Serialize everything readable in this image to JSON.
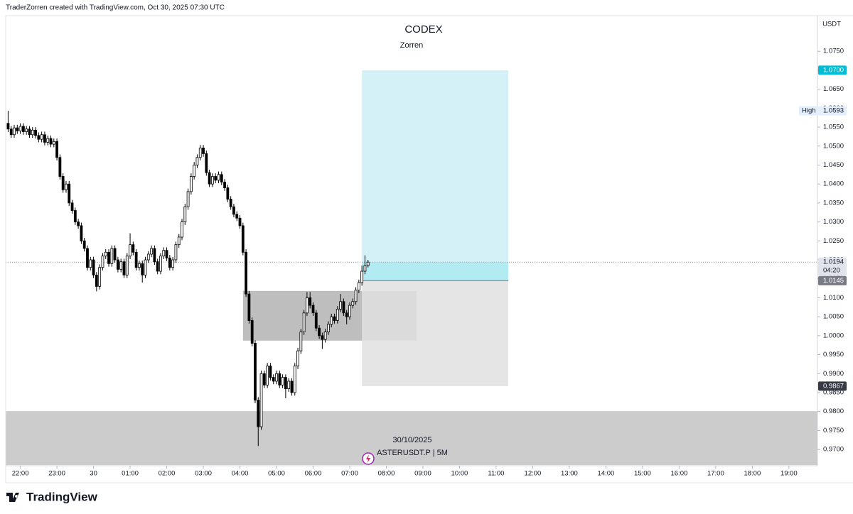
{
  "header": "TraderZorren created with TradingView.com, Oct 30, 2025 07:30 UTC",
  "footer": "TradingView",
  "chart_data": {
    "type": "candlestick",
    "title": "CODEX",
    "subtitle": "Zorren",
    "currency": "USDT",
    "watermark_date": "30/10/2025",
    "watermark_symbol": "ASTERUSDT.P | 5M",
    "up_color": "#ffffff",
    "down_color": "#000000",
    "grid": false,
    "x": [
      "21:40",
      "21:45",
      "21:50",
      "21:55",
      "22:00",
      "22:05",
      "22:10",
      "22:15",
      "22:20",
      "22:25",
      "22:30",
      "22:35",
      "22:40",
      "22:45",
      "22:50",
      "22:55",
      "23:00",
      "23:05",
      "23:10",
      "23:15",
      "23:20",
      "23:25",
      "23:30",
      "23:35",
      "23:40",
      "23:45",
      "23:50",
      "23:55",
      "00:00",
      "00:05",
      "00:10",
      "00:15",
      "00:20",
      "00:25",
      "00:30",
      "00:35",
      "00:40",
      "00:45",
      "00:50",
      "00:55",
      "01:00",
      "01:05",
      "01:10",
      "01:15",
      "01:20",
      "01:25",
      "01:30",
      "01:35",
      "01:40",
      "01:45",
      "01:50",
      "01:55",
      "02:00",
      "02:05",
      "02:10",
      "02:15",
      "02:20",
      "02:25",
      "02:30",
      "02:35",
      "02:40",
      "02:45",
      "02:50",
      "02:55",
      "03:00",
      "03:05",
      "03:10",
      "03:15",
      "03:20",
      "03:25",
      "03:30",
      "03:35",
      "03:40",
      "03:45",
      "03:50",
      "03:55",
      "04:00",
      "04:05",
      "04:10",
      "04:15",
      "04:20",
      "04:25",
      "04:30",
      "04:35",
      "04:40",
      "04:45",
      "04:50",
      "04:55",
      "05:00",
      "05:05",
      "05:10",
      "05:15",
      "05:20",
      "05:25",
      "05:30",
      "05:35",
      "05:40",
      "05:45",
      "05:50",
      "05:55",
      "06:00",
      "06:05",
      "06:10",
      "06:15",
      "06:20",
      "06:25",
      "06:30",
      "06:35",
      "06:40",
      "06:45",
      "06:50",
      "06:55",
      "07:00",
      "07:05",
      "07:10",
      "07:15",
      "07:20",
      "07:25",
      "07:30"
    ],
    "open": [
      1.056,
      1.0545,
      1.053,
      1.0548,
      1.054,
      1.0552,
      1.0538,
      1.0545,
      1.053,
      1.0542,
      1.0528,
      1.0518,
      1.053,
      1.051,
      1.052,
      1.0505,
      1.0512,
      1.047,
      1.042,
      1.0385,
      1.04,
      1.035,
      1.033,
      1.03,
      1.029,
      1.025,
      1.023,
      1.018,
      1.02,
      1.016,
      1.013,
      1.018,
      1.021,
      1.022,
      1.019,
      1.023,
      1.02,
      1.0175,
      1.0195,
      1.016,
      1.021,
      1.024,
      1.022,
      1.018,
      1.019,
      1.016,
      1.02,
      1.0215,
      1.023,
      1.0195,
      1.017,
      1.021,
      1.0225,
      1.0205,
      1.018,
      1.02,
      1.024,
      1.026,
      1.03,
      1.034,
      1.038,
      1.042,
      1.045,
      1.047,
      1.0495,
      1.048,
      1.043,
      1.04,
      1.042,
      1.041,
      1.0425,
      1.0405,
      1.039,
      1.036,
      1.034,
      1.032,
      1.031,
      1.029,
      1.022,
      1.011,
      1.004,
      0.998,
      0.983,
      0.976,
      0.99,
      0.987,
      0.992,
      0.989,
      0.988,
      0.99,
      0.987,
      0.989,
      0.986,
      0.988,
      0.985,
      0.992,
      0.996,
      1.001,
      1.006,
      1.01,
      1.008,
      1.006,
      1.002,
      1.0,
      0.999,
      1.001,
      1.003,
      1.005,
      1.004,
      1.007,
      1.009,
      1.006,
      1.005,
      1.008,
      1.009,
      1.012,
      1.014,
      1.017,
      1.0185
    ],
    "high": [
      1.0593,
      1.0553,
      1.0556,
      1.0556,
      1.056,
      1.056,
      1.0553,
      1.0553,
      1.055,
      1.055,
      1.0536,
      1.0538,
      1.0538,
      1.0528,
      1.0528,
      1.052,
      1.052,
      1.0478,
      1.0428,
      1.0408,
      1.0408,
      1.0358,
      1.0338,
      1.0308,
      1.0298,
      1.0258,
      1.0238,
      1.0208,
      1.0208,
      1.0168,
      1.0188,
      1.0218,
      1.0228,
      1.0228,
      1.0238,
      1.0238,
      1.0208,
      1.0203,
      1.0203,
      1.0218,
      1.027,
      1.0248,
      1.0228,
      1.0198,
      1.0198,
      1.0208,
      1.0223,
      1.0238,
      1.0238,
      1.0203,
      1.0218,
      1.0233,
      1.0233,
      1.0213,
      1.0208,
      1.0248,
      1.0268,
      1.0308,
      1.0348,
      1.0388,
      1.0428,
      1.0458,
      1.0478,
      1.0503,
      1.0503,
      1.0488,
      1.0438,
      1.0428,
      1.0428,
      1.0433,
      1.0433,
      1.0413,
      1.0398,
      1.0368,
      1.0348,
      1.0328,
      1.0318,
      1.0298,
      1.0228,
      1.0118,
      1.0048,
      0.9988,
      0.9838,
      0.9908,
      0.9908,
      0.9928,
      0.9928,
      0.9898,
      0.9908,
      0.9908,
      0.9898,
      0.9898,
      0.9888,
      0.9888,
      0.9928,
      0.9968,
      1.0018,
      1.0068,
      1.0115,
      1.0115,
      1.0088,
      1.0068,
      1.0028,
      1.0008,
      1.0018,
      1.0038,
      1.0058,
      1.0058,
      1.0078,
      1.011,
      1.0098,
      1.0068,
      1.0088,
      1.0098,
      1.0128,
      1.0148,
      1.0185,
      1.0212,
      1.02
    ],
    "low": [
      1.0537,
      1.0522,
      1.0522,
      1.0532,
      1.0532,
      1.053,
      1.053,
      1.0522,
      1.0522,
      1.052,
      1.051,
      1.051,
      1.0502,
      1.0502,
      1.0497,
      1.0497,
      1.0462,
      1.0412,
      1.0377,
      1.0377,
      1.0342,
      1.0322,
      1.0292,
      1.0282,
      1.0242,
      1.0222,
      1.0172,
      1.0172,
      1.0152,
      1.0117,
      1.0122,
      1.0172,
      1.0202,
      1.0182,
      1.0182,
      1.0192,
      1.0167,
      1.0167,
      1.0152,
      1.0152,
      1.0202,
      1.0212,
      1.0172,
      1.0172,
      1.014,
      1.0152,
      1.0192,
      1.0207,
      1.0187,
      1.0162,
      1.0162,
      1.0202,
      1.0197,
      1.0172,
      1.0172,
      1.0192,
      1.0232,
      1.0252,
      1.0292,
      1.0332,
      1.0372,
      1.0412,
      1.0442,
      1.0462,
      1.0472,
      1.0422,
      1.0392,
      1.0392,
      1.0402,
      1.0402,
      1.0397,
      1.0382,
      1.0352,
      1.0332,
      1.0312,
      1.0302,
      1.0282,
      1.0212,
      1.0102,
      1.0032,
      0.9972,
      0.9822,
      0.9709,
      0.9752,
      0.9862,
      0.9862,
      0.9882,
      0.9872,
      0.9872,
      0.9862,
      0.9862,
      0.9835,
      0.9852,
      0.9842,
      0.9842,
      0.9912,
      0.9952,
      1.0002,
      1.0052,
      1.0072,
      1.0052,
      1.0012,
      0.9992,
      0.9965,
      0.9982,
      1.0002,
      1.0022,
      1.0032,
      1.0032,
      1.0062,
      1.0052,
      1.003,
      1.0042,
      1.0072,
      1.0082,
      1.0112,
      1.0132,
      1.0162,
      1.018
    ],
    "close": [
      1.0545,
      1.053,
      1.0548,
      1.054,
      1.0552,
      1.0538,
      1.0545,
      1.053,
      1.0542,
      1.0528,
      1.0518,
      1.053,
      1.051,
      1.052,
      1.0505,
      1.0512,
      1.047,
      1.042,
      1.0385,
      1.04,
      1.035,
      1.033,
      1.03,
      1.029,
      1.025,
      1.023,
      1.018,
      1.02,
      1.016,
      1.013,
      1.018,
      1.021,
      1.022,
      1.019,
      1.023,
      1.02,
      1.0175,
      1.0195,
      1.016,
      1.021,
      1.024,
      1.022,
      1.018,
      1.019,
      1.016,
      1.02,
      1.0215,
      1.023,
      1.0195,
      1.017,
      1.021,
      1.0225,
      1.0205,
      1.018,
      1.02,
      1.024,
      1.026,
      1.03,
      1.034,
      1.038,
      1.042,
      1.045,
      1.047,
      1.0495,
      1.048,
      1.043,
      1.04,
      1.042,
      1.041,
      1.0425,
      1.0405,
      1.039,
      1.036,
      1.034,
      1.032,
      1.031,
      1.029,
      1.022,
      1.011,
      1.004,
      0.998,
      0.983,
      0.976,
      0.99,
      0.987,
      0.992,
      0.989,
      0.988,
      0.99,
      0.987,
      0.989,
      0.986,
      0.988,
      0.985,
      0.992,
      0.996,
      1.001,
      1.006,
      1.01,
      1.008,
      1.006,
      1.002,
      1.0,
      0.999,
      1.001,
      1.003,
      1.005,
      1.004,
      1.007,
      1.009,
      1.006,
      1.005,
      1.008,
      1.009,
      1.012,
      1.014,
      1.017,
      1.0185,
      1.0194
    ],
    "xlim": [
      21.6,
      43.78
    ],
    "xticks": [
      {
        "value": 22,
        "label": "22:00"
      },
      {
        "value": 23,
        "label": "23:00"
      },
      {
        "value": 24,
        "label": "30"
      },
      {
        "value": 25,
        "label": "01:00"
      },
      {
        "value": 26,
        "label": "02:00"
      },
      {
        "value": 27,
        "label": "03:00"
      },
      {
        "value": 28,
        "label": "04:00"
      },
      {
        "value": 29,
        "label": "05:00"
      },
      {
        "value": 30,
        "label": "06:00"
      },
      {
        "value": 31,
        "label": "07:00"
      },
      {
        "value": 32,
        "label": "08:00"
      },
      {
        "value": 33,
        "label": "09:00"
      },
      {
        "value": 34,
        "label": "10:00"
      },
      {
        "value": 35,
        "label": "11:00"
      },
      {
        "value": 36,
        "label": "12:00"
      },
      {
        "value": 37,
        "label": "13:00"
      },
      {
        "value": 38,
        "label": "14:00"
      },
      {
        "value": 39,
        "label": "15:00"
      },
      {
        "value": 40,
        "label": "16:00"
      },
      {
        "value": 41,
        "label": "17:00"
      },
      {
        "value": 42,
        "label": "18:00"
      },
      {
        "value": 43,
        "label": "19:00"
      }
    ],
    "ylim": [
      0.9659,
      1.0844
    ],
    "yticks": [
      {
        "value": 0.97,
        "label": "0.9700"
      },
      {
        "value": 0.975,
        "label": "0.9750"
      },
      {
        "value": 0.98,
        "label": "0.9800"
      },
      {
        "value": 0.985,
        "label": "0.9850"
      },
      {
        "value": 0.99,
        "label": "0.9900"
      },
      {
        "value": 0.995,
        "label": "0.9950"
      },
      {
        "value": 1.0,
        "label": "1.0000"
      },
      {
        "value": 1.005,
        "label": "1.0050"
      },
      {
        "value": 1.01,
        "label": "1.0100"
      },
      {
        "value": 1.015,
        "label": "1.0150"
      },
      {
        "value": 1.02,
        "label": "1.0200"
      },
      {
        "value": 1.025,
        "label": "1.0250"
      },
      {
        "value": 1.03,
        "label": "1.0300"
      },
      {
        "value": 1.035,
        "label": "1.0350"
      },
      {
        "value": 1.04,
        "label": "1.0400"
      },
      {
        "value": 1.045,
        "label": "1.0450"
      },
      {
        "value": 1.05,
        "label": "1.0500"
      },
      {
        "value": 1.055,
        "label": "1.0550"
      },
      {
        "value": 1.06,
        "label": "1.0600"
      },
      {
        "value": 1.065,
        "label": "1.0650"
      },
      {
        "value": 1.07,
        "label": "1.0700"
      },
      {
        "value": 1.075,
        "label": "1.0750"
      }
    ],
    "position": {
      "x0": "07:20",
      "x1": "11:20",
      "target": 1.07,
      "entry": 1.0145,
      "stop": 0.9867,
      "target_color": "#d3f1f6",
      "filled_color": "#b2ebf2",
      "stop_color": "#e0e0e0"
    },
    "zones": [
      {
        "x0": "04:05",
        "x1": "08:50",
        "low": 0.9987,
        "high": 1.0118,
        "color": "rgba(110,110,110,0.45)"
      },
      {
        "high": 0.9801,
        "color": "rgba(120,120,120,0.38)"
      }
    ],
    "price_labels": [
      {
        "value": 1.07,
        "label": "1.0700",
        "color": "#00bcd4",
        "text_color": "#ffffff"
      },
      {
        "value": 1.0593,
        "label": "1.0593",
        "tag": "High",
        "color": "#e3effd",
        "text_color": "#131722"
      },
      {
        "value": 1.0194,
        "label": "1.0194",
        "sub": "04:20",
        "color": "#e0e3eb",
        "text_color": "#131722"
      },
      {
        "value": 1.0145,
        "label": "1.0145",
        "color": "#787b86",
        "text_color": "#ffffff"
      },
      {
        "value": 0.9867,
        "label": "0.9867",
        "color": "#363a45",
        "text_color": "#ffffff"
      }
    ]
  }
}
